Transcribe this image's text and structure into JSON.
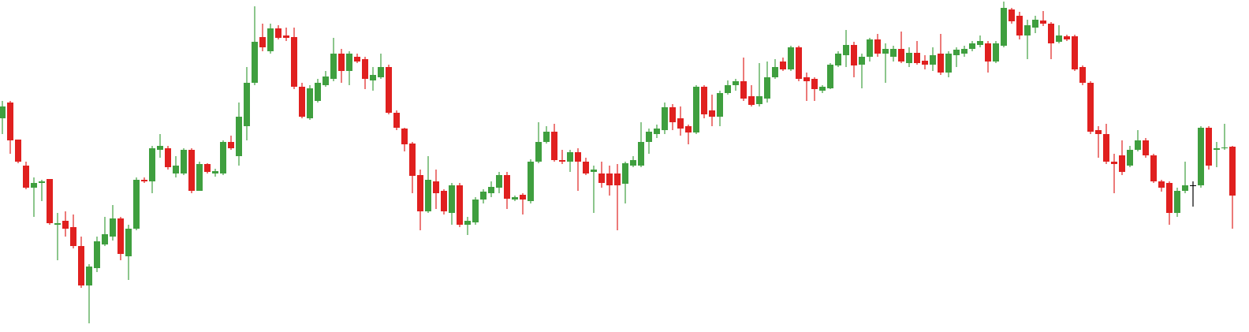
{
  "chart_data": {
    "type": "candlestick",
    "ylim": [
      0,
      421
    ],
    "up_color": "#3f9f3f",
    "down_color": "#e0201f",
    "flat_color": "#000000",
    "open": [
      271,
      291,
      244,
      211,
      183,
      189,
      194,
      136,
      141,
      133,
      109,
      59,
      81,
      111,
      121,
      144,
      96,
      131,
      193,
      191,
      231,
      233,
      201,
      201,
      231,
      179,
      213,
      201,
      201,
      241,
      223,
      261,
      316,
      374,
      356,
      385,
      376,
      374,
      311,
      271,
      293,
      313,
      321,
      353,
      331,
      349,
      346,
      319,
      323,
      336,
      278,
      258,
      239,
      199,
      153,
      191,
      179,
      151,
      186,
      136,
      139,
      168,
      176,
      183,
      199,
      168,
      174,
      166,
      216,
      241,
      254,
      218,
      216,
      228,
      216,
      203,
      201,
      201,
      201,
      188,
      211,
      211,
      241,
      251,
      256,
      285,
      271,
      261,
      253,
      311,
      281,
      273,
      303,
      313,
      318,
      299,
      289,
      296,
      323,
      343,
      333,
      361,
      323,
      321,
      306,
      309,
      338,
      351,
      364,
      339,
      349,
      371,
      353,
      349,
      359,
      341,
      354,
      344,
      339,
      353,
      329,
      351,
      353,
      359,
      364,
      366,
      343,
      363,
      409,
      401,
      376,
      386,
      395,
      391,
      368,
      375,
      375,
      336,
      316,
      256,
      251,
      216,
      224,
      211,
      231,
      243,
      224,
      191,
      189,
      151,
      179,
      186,
      186,
      259,
      231,
      233,
      235
    ],
    "high": [
      293,
      293,
      244,
      216,
      196,
      193,
      194,
      151,
      153,
      149,
      121,
      86,
      121,
      146,
      161,
      146,
      136,
      196,
      196,
      236,
      251,
      236,
      223,
      233,
      233,
      216,
      214,
      207,
      243,
      249,
      291,
      336,
      413,
      391,
      391,
      389,
      386,
      386,
      316,
      313,
      321,
      331,
      373,
      359,
      356,
      353,
      349,
      336,
      353,
      339,
      281,
      259,
      241,
      206,
      223,
      206,
      181,
      189,
      189,
      146,
      171,
      181,
      191,
      203,
      203,
      173,
      176,
      219,
      266,
      261,
      264,
      231,
      231,
      233,
      221,
      211,
      216,
      211,
      213,
      216,
      223,
      266,
      258,
      263,
      291,
      289,
      286,
      263,
      313,
      313,
      301,
      306,
      319,
      321,
      348,
      313,
      341,
      343,
      346,
      348,
      363,
      363,
      329,
      323,
      313,
      341,
      356,
      383,
      368,
      353,
      373,
      378,
      366,
      363,
      381,
      361,
      369,
      351,
      361,
      378,
      356,
      361,
      363,
      369,
      376,
      369,
      369,
      419,
      411,
      406,
      396,
      401,
      407,
      393,
      389,
      377,
      377,
      338,
      318,
      261,
      264,
      226,
      243,
      236,
      256,
      246,
      226,
      193,
      191,
      183,
      216,
      191,
      261,
      261,
      241,
      264,
      236
    ],
    "low": [
      251,
      226,
      214,
      181,
      146,
      166,
      136,
      91,
      121,
      106,
      56,
      11,
      76,
      109,
      116,
      91,
      66,
      129,
      189,
      176,
      221,
      206,
      196,
      199,
      176,
      179,
      201,
      197,
      199,
      231,
      211,
      243,
      313,
      356,
      353,
      371,
      369,
      308,
      271,
      269,
      291,
      311,
      318,
      316,
      313,
      341,
      308,
      306,
      321,
      276,
      256,
      229,
      176,
      129,
      151,
      156,
      149,
      136,
      133,
      123,
      136,
      163,
      171,
      176,
      156,
      166,
      149,
      163,
      214,
      239,
      216,
      213,
      203,
      179,
      199,
      151,
      183,
      173,
      129,
      163,
      209,
      209,
      226,
      246,
      251,
      256,
      249,
      238,
      251,
      271,
      261,
      261,
      301,
      306,
      293,
      286,
      286,
      291,
      321,
      331,
      331,
      318,
      293,
      293,
      303,
      308,
      336,
      336,
      323,
      309,
      343,
      349,
      316,
      343,
      341,
      336,
      339,
      333,
      331,
      326,
      323,
      336,
      349,
      356,
      361,
      329,
      341,
      361,
      391,
      371,
      346,
      379,
      388,
      346,
      366,
      369,
      331,
      313,
      251,
      221,
      213,
      176,
      199,
      209,
      229,
      221,
      189,
      178,
      136,
      146,
      176,
      159,
      183,
      206,
      209,
      231,
      131
    ],
    "close": [
      286,
      243,
      216,
      183,
      189,
      191,
      138,
      138,
      131,
      109,
      59,
      83,
      115,
      124,
      144,
      99,
      131,
      193,
      191,
      233,
      236,
      209,
      211,
      231,
      179,
      213,
      203,
      204,
      241,
      233,
      273,
      316,
      368,
      361,
      385,
      373,
      373,
      311,
      273,
      309,
      316,
      324,
      353,
      331,
      353,
      343,
      321,
      326,
      336,
      278,
      259,
      238,
      198,
      153,
      193,
      176,
      153,
      186,
      136,
      141,
      168,
      178,
      184,
      199,
      169,
      171,
      168,
      216,
      241,
      254,
      218,
      216,
      228,
      216,
      201,
      206,
      189,
      186,
      186,
      214,
      218,
      241,
      254,
      258,
      285,
      266,
      258,
      253,
      311,
      276,
      273,
      303,
      313,
      318,
      296,
      288,
      299,
      323,
      336,
      333,
      361,
      321,
      318,
      308,
      311,
      339,
      353,
      364,
      338,
      349,
      371,
      353,
      359,
      359,
      343,
      354,
      341,
      339,
      351,
      329,
      353,
      358,
      359,
      366,
      369,
      343,
      366,
      411,
      394,
      376,
      389,
      396,
      391,
      366,
      376,
      371,
      333,
      316,
      254,
      251,
      216,
      213,
      203,
      231,
      243,
      224,
      191,
      183,
      151,
      179,
      186,
      186,
      259,
      211,
      233,
      234,
      173
    ]
  }
}
